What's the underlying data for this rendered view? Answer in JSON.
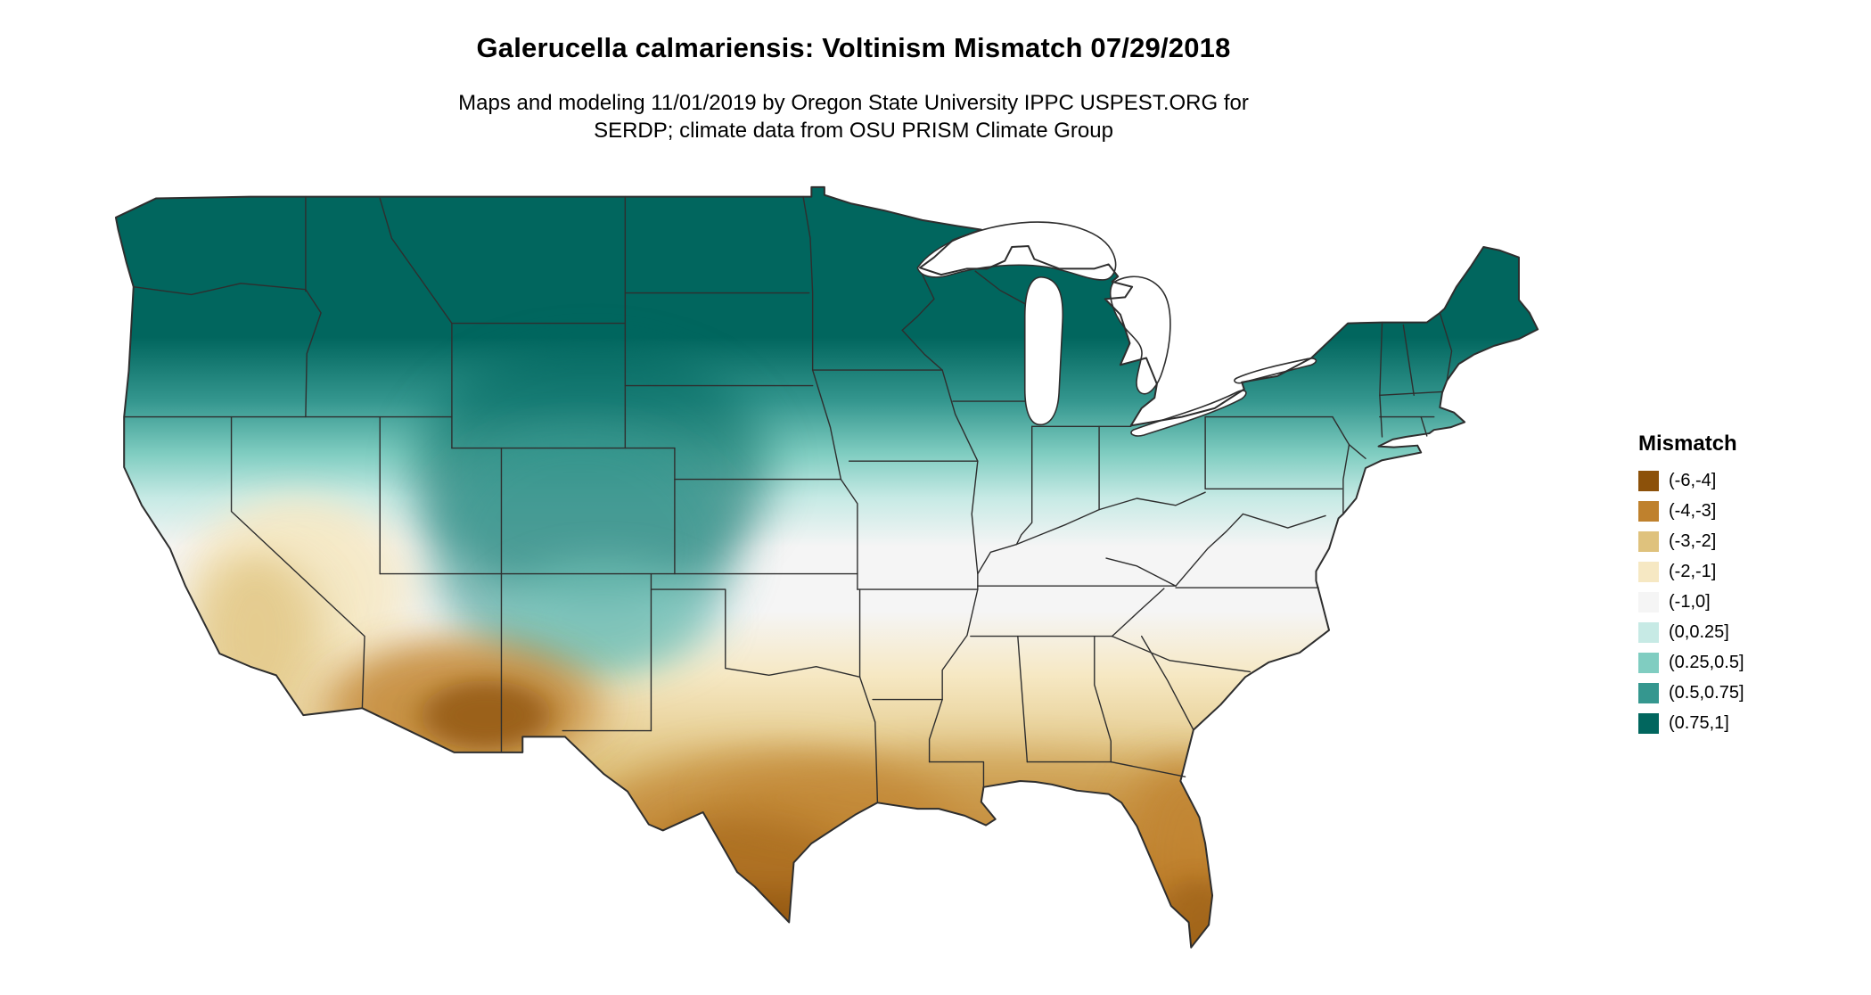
{
  "header": {
    "title": "Galerucella calmariensis: Voltinism Mismatch 07/29/2018",
    "subtitle_line1": "Maps and modeling 11/01/2019 by Oregon State University IPPC USPEST.ORG for",
    "subtitle_line2": "SERDP; climate data from OSU PRISM Climate Group"
  },
  "legend": {
    "title": "Mismatch",
    "entries": [
      {
        "label": "(-6,-4]",
        "color": "#8c510a"
      },
      {
        "label": "(-4,-3]",
        "color": "#bf812d"
      },
      {
        "label": "(-3,-2]",
        "color": "#dfc27d"
      },
      {
        "label": "(-2,-1]",
        "color": "#f6e8c3"
      },
      {
        "label": "(-1,0]",
        "color": "#f5f5f5"
      },
      {
        "label": "(0,0.25]",
        "color": "#c7eae5"
      },
      {
        "label": "(0.25,0.5]",
        "color": "#80cdc1"
      },
      {
        "label": "(0.5,0.75]",
        "color": "#35978f"
      },
      {
        "label": "(0.75,1]",
        "color": "#01665e"
      }
    ]
  },
  "map": {
    "boundary_color": "#2e2e2e",
    "background_color": "#ffffff",
    "north_color": "#01665e",
    "south_color": "#8c510a"
  }
}
